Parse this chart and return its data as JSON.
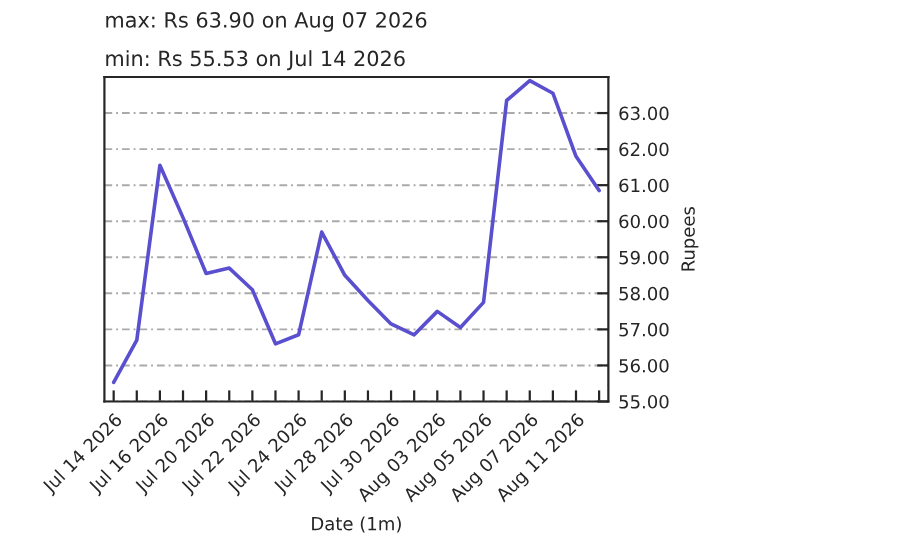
{
  "chart_data": {
    "type": "line",
    "title": "max: Rs 63.90 on Aug 07 2026",
    "subtitle": "min: Rs 55.53 on Jul 14 2026",
    "xlabel": "Date (1m)",
    "ylabel": "Rupees",
    "categories": [
      "Jul 14 2026",
      null,
      "Jul 16 2026",
      null,
      "Jul 20 2026",
      null,
      "Jul 22 2026",
      null,
      "Jul 24 2026",
      null,
      "Jul 28 2026",
      null,
      "Jul 30 2026",
      null,
      "Aug 03 2026",
      null,
      "Aug 05 2026",
      null,
      "Aug 07 2026",
      null,
      "Aug 11 2026",
      null
    ],
    "series": [
      {
        "color": "#5a4fcf",
        "values": [
          55.53,
          56.7,
          61.55,
          60.1,
          58.55,
          58.7,
          58.1,
          56.6,
          56.85,
          59.7,
          58.5,
          57.8,
          57.15,
          56.85,
          57.5,
          57.05,
          57.75,
          63.35,
          63.9,
          63.55,
          61.8,
          60.85
        ]
      }
    ],
    "ylim": [
      55,
      64
    ],
    "yticks": [
      {
        "value": 55,
        "label": "55.00"
      },
      {
        "value": 56,
        "label": "56.00"
      },
      {
        "value": 57,
        "label": "57.00"
      },
      {
        "value": 58,
        "label": "58.00"
      },
      {
        "value": 59,
        "label": "59.00"
      },
      {
        "value": 60,
        "label": "60.00"
      },
      {
        "value": 61,
        "label": "61.00"
      },
      {
        "value": 62,
        "label": "62.00"
      },
      {
        "value": 63,
        "label": "63.00"
      }
    ],
    "grid": "y",
    "marker": "none",
    "line_style": "solid"
  }
}
